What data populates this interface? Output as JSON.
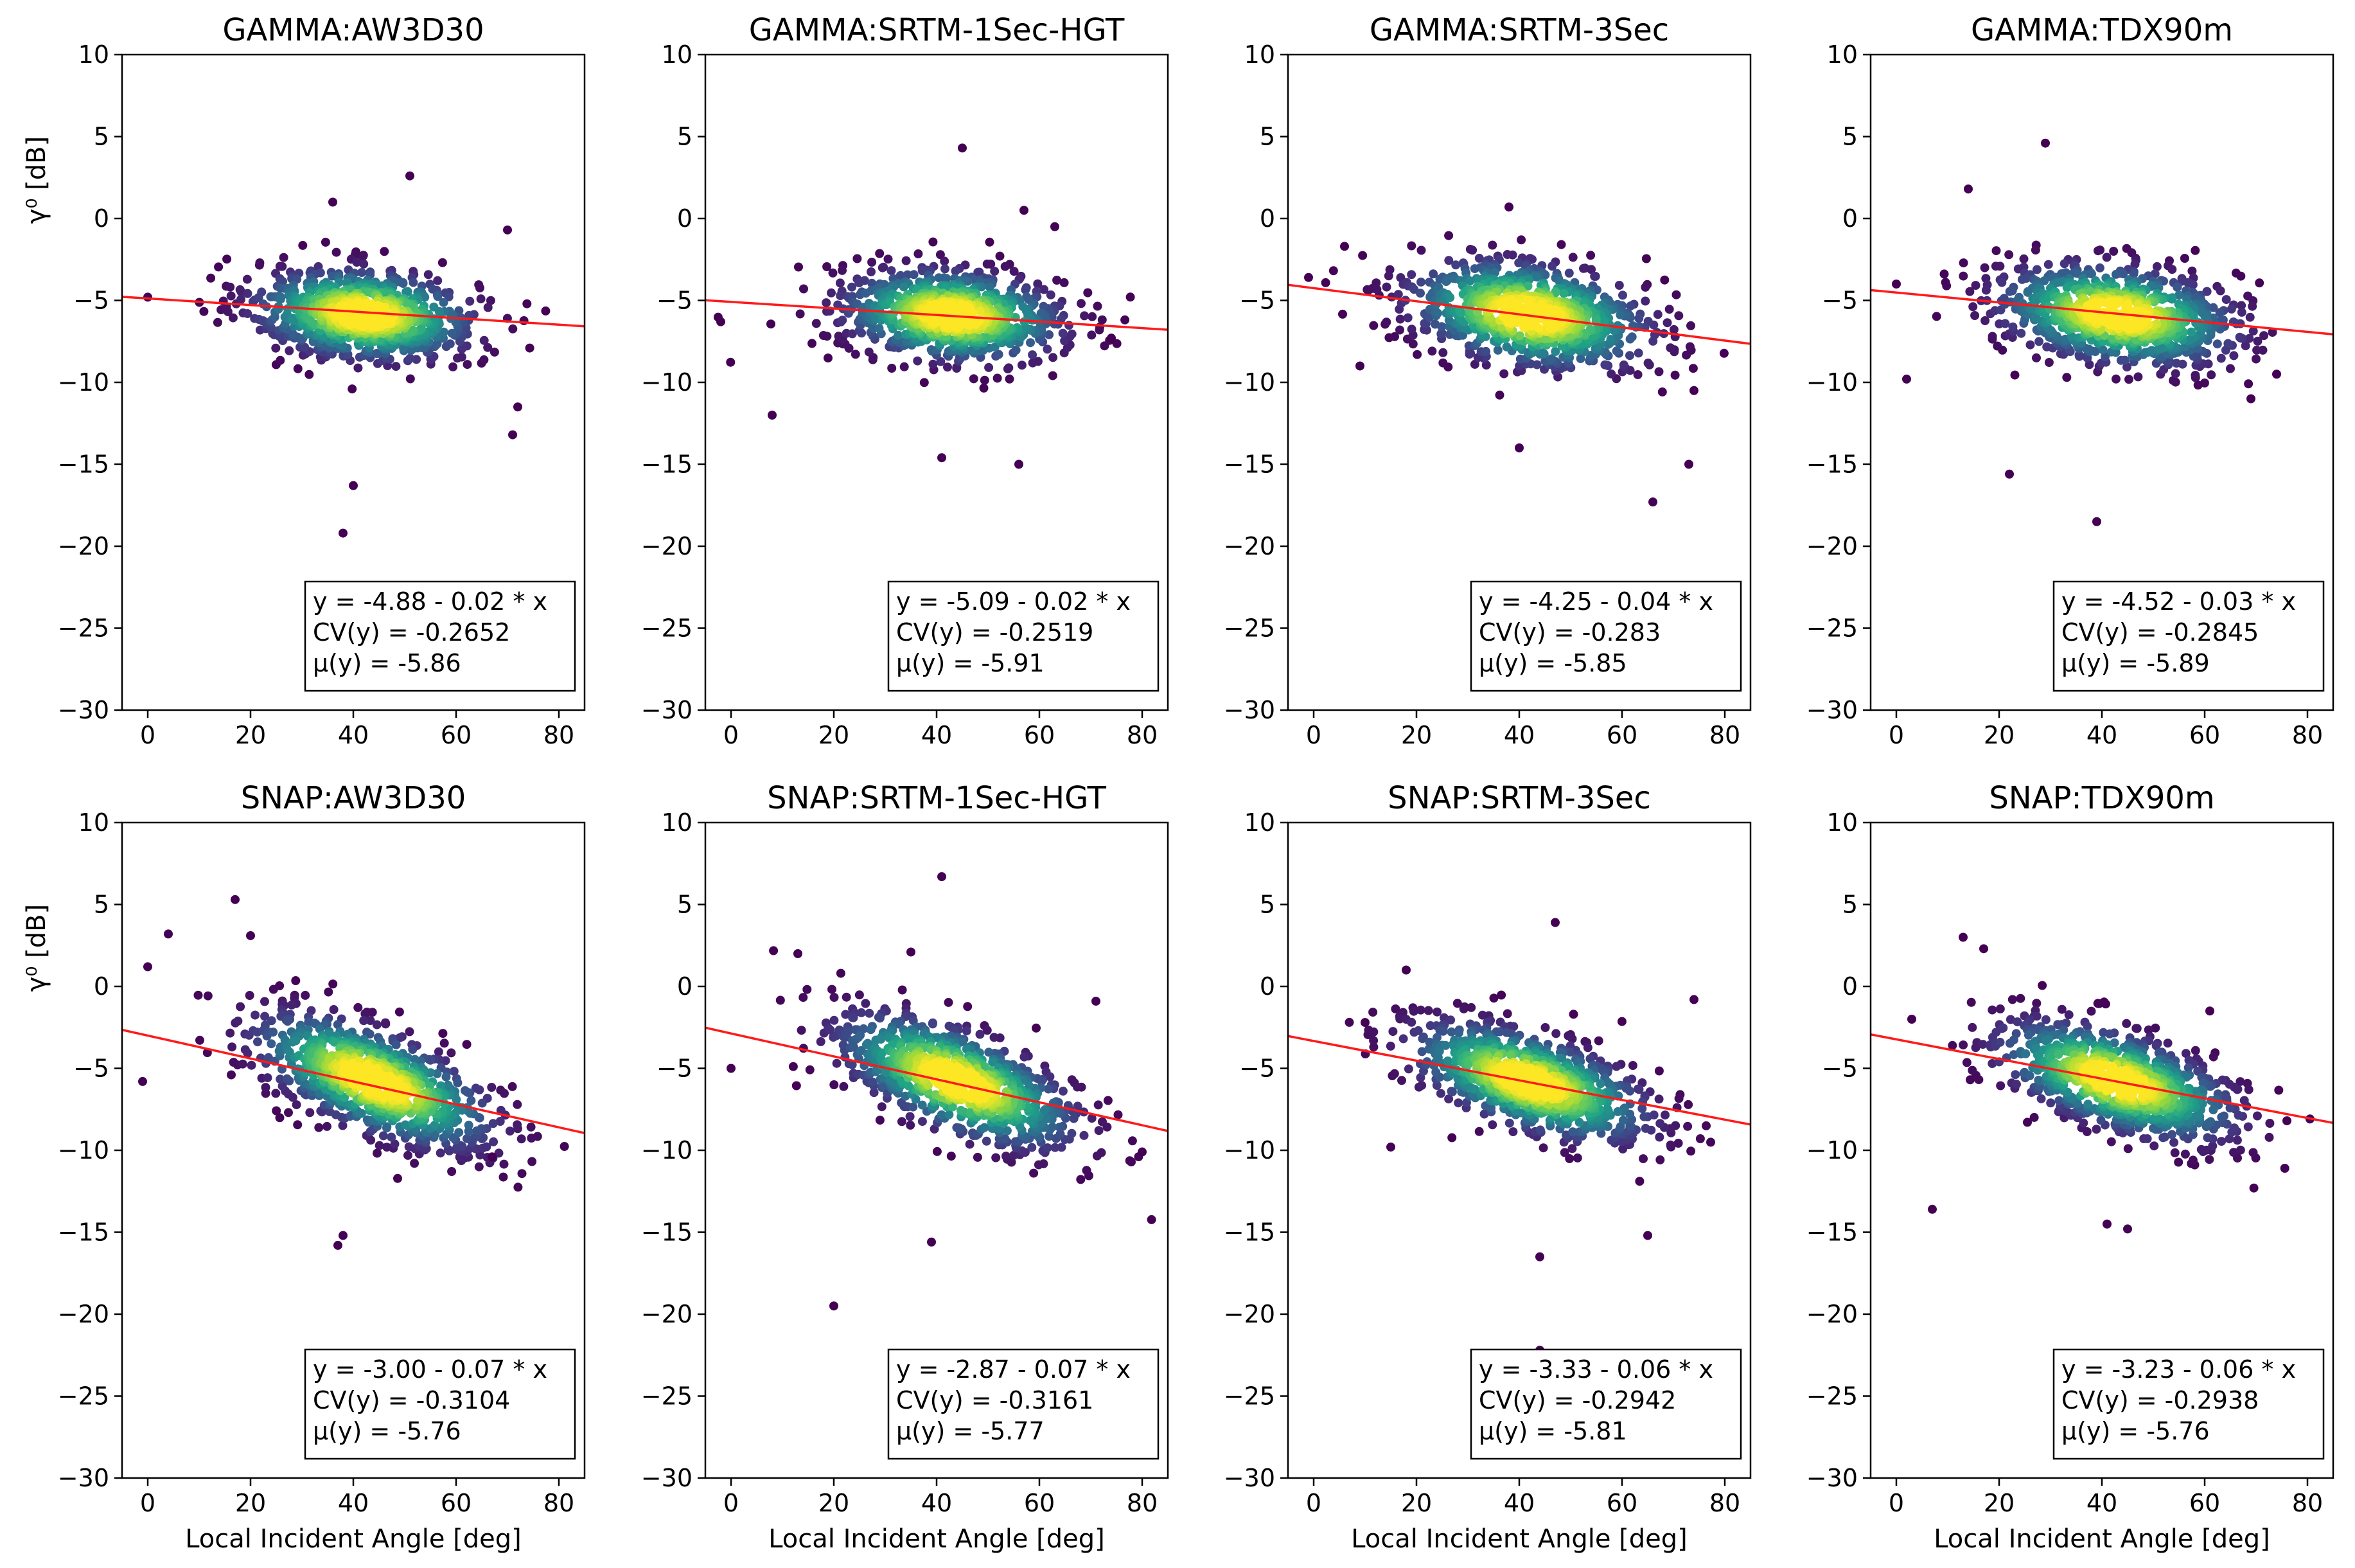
{
  "chart_data": [
    {
      "type": "scatter",
      "title": "GAMMA:AW3D30",
      "xlabel": "",
      "ylabel": "γ⁰ [dB]",
      "xlim": [
        -5,
        85
      ],
      "ylim": [
        -30,
        10
      ],
      "xticks": [
        0,
        20,
        40,
        60,
        80
      ],
      "yticks": [
        10,
        5,
        0,
        -5,
        -10,
        -15,
        -20,
        -25,
        -30
      ],
      "fit": {
        "intercept": -4.88,
        "slope": -0.02
      },
      "center": [
        42,
        -5.86
      ],
      "spread": [
        11,
        1.4
      ],
      "tilt": 0.3,
      "outliers": [
        [
          38,
          -19.2
        ],
        [
          40,
          -16.3
        ],
        [
          51,
          2.6
        ],
        [
          36,
          1.0
        ],
        [
          70,
          -0.7
        ],
        [
          71,
          -13.2
        ],
        [
          0,
          -4.8
        ],
        [
          72,
          -11.5
        ]
      ],
      "stats": {
        "line": "y = -4.88 - 0.02 * x",
        "cv": "CV(y) = -0.2652",
        "mu": "μ(y) = -5.86"
      }
    },
    {
      "type": "scatter",
      "title": "GAMMA:SRTM-1Sec-HGT",
      "xlabel": "",
      "ylabel": "",
      "xlim": [
        -5,
        85
      ],
      "ylim": [
        -30,
        10
      ],
      "xticks": [
        0,
        20,
        40,
        60,
        80
      ],
      "yticks": [
        10,
        5,
        0,
        -5,
        -10,
        -15,
        -20,
        -25,
        -30
      ],
      "fit": {
        "intercept": -5.09,
        "slope": -0.02
      },
      "center": [
        43,
        -5.91
      ],
      "spread": [
        11,
        1.4
      ],
      "tilt": 0.3,
      "outliers": [
        [
          45,
          4.3
        ],
        [
          57,
          0.5
        ],
        [
          8,
          -12.0
        ],
        [
          41,
          -14.6
        ],
        [
          56,
          -15.0
        ],
        [
          -2,
          -6.3
        ],
        [
          74,
          -7.3
        ],
        [
          63,
          -0.5
        ]
      ],
      "stats": {
        "line": "y = -5.09 - 0.02 * x",
        "cv": "CV(y) = -0.2519",
        "mu": "μ(y) = -5.91"
      }
    },
    {
      "type": "scatter",
      "title": "GAMMA:SRTM-3Sec",
      "xlabel": "",
      "ylabel": "",
      "xlim": [
        -5,
        85
      ],
      "ylim": [
        -30,
        10
      ],
      "xticks": [
        0,
        20,
        40,
        60,
        80
      ],
      "yticks": [
        10,
        5,
        0,
        -5,
        -10,
        -15,
        -20,
        -25,
        -30
      ],
      "fit": {
        "intercept": -4.25,
        "slope": -0.04
      },
      "center": [
        42,
        -5.85
      ],
      "spread": [
        12,
        1.6
      ],
      "tilt": 0.6,
      "outliers": [
        [
          66,
          -17.3
        ],
        [
          40,
          -14.0
        ],
        [
          38,
          0.7
        ],
        [
          6,
          -1.7
        ],
        [
          9,
          -9.0
        ],
        [
          73,
          -15.0
        ],
        [
          74,
          -10.5
        ],
        [
          -1,
          -3.6
        ]
      ],
      "stats": {
        "line": "y = -4.25 - 0.04 * x",
        "cv": "CV(y) = -0.283",
        "mu": "μ(y) = -5.85"
      }
    },
    {
      "type": "scatter",
      "title": "GAMMA:TDX90m",
      "xlabel": "",
      "ylabel": "",
      "xlim": [
        -5,
        85
      ],
      "ylim": [
        -30,
        10
      ],
      "xticks": [
        0,
        20,
        40,
        60,
        80
      ],
      "yticks": [
        10,
        5,
        0,
        -5,
        -10,
        -15,
        -20,
        -25,
        -30
      ],
      "fit": {
        "intercept": -4.52,
        "slope": -0.03
      },
      "center": [
        43,
        -5.89
      ],
      "spread": [
        12,
        1.5
      ],
      "tilt": 0.5,
      "outliers": [
        [
          29,
          4.6
        ],
        [
          39,
          -18.5
        ],
        [
          22,
          -15.6
        ],
        [
          14,
          1.8
        ],
        [
          0,
          -4.0
        ],
        [
          2,
          -9.8
        ],
        [
          69,
          -11.0
        ],
        [
          74,
          -9.5
        ]
      ],
      "stats": {
        "line": "y = -4.52 - 0.03 * x",
        "cv": "CV(y) = -0.2845",
        "mu": "μ(y) = -5.89"
      }
    },
    {
      "type": "scatter",
      "title": "SNAP:AW3D30",
      "xlabel": "Local Incident Angle [deg]",
      "ylabel": "γ⁰ [dB]",
      "xlim": [
        -5,
        85
      ],
      "ylim": [
        -30,
        10
      ],
      "xticks": [
        0,
        20,
        40,
        60,
        80
      ],
      "yticks": [
        10,
        5,
        0,
        -5,
        -10,
        -15,
        -20,
        -25,
        -30
      ],
      "fit": {
        "intercept": -3.0,
        "slope": -0.07
      },
      "center": [
        44,
        -5.76
      ],
      "spread": [
        12,
        1.6
      ],
      "tilt": 1.5,
      "outliers": [
        [
          17,
          5.3
        ],
        [
          4,
          3.2
        ],
        [
          0,
          1.2
        ],
        [
          37,
          -15.8
        ],
        [
          20,
          3.1
        ],
        [
          -1,
          -5.8
        ],
        [
          67,
          -10.4
        ],
        [
          38,
          -15.2
        ]
      ],
      "stats": {
        "line": "y = -3.00 - 0.07 * x",
        "cv": "CV(y) = -0.3104",
        "mu": "μ(y) = -5.76"
      }
    },
    {
      "type": "scatter",
      "title": "SNAP:SRTM-1Sec-HGT",
      "xlabel": "Local Incident Angle [deg]",
      "ylabel": "",
      "xlim": [
        -5,
        85
      ],
      "ylim": [
        -30,
        10
      ],
      "xticks": [
        0,
        20,
        40,
        60,
        80
      ],
      "yticks": [
        10,
        5,
        0,
        -5,
        -10,
        -15,
        -20,
        -25,
        -30
      ],
      "fit": {
        "intercept": -2.87,
        "slope": -0.07
      },
      "center": [
        44,
        -5.77
      ],
      "spread": [
        12,
        1.6
      ],
      "tilt": 1.5,
      "outliers": [
        [
          41,
          6.7
        ],
        [
          20,
          -19.5
        ],
        [
          35,
          2.1
        ],
        [
          13,
          2.0
        ],
        [
          71,
          -0.9
        ],
        [
          39,
          -15.6
        ],
        [
          80,
          -10.1
        ],
        [
          0,
          -5.0
        ]
      ],
      "stats": {
        "line": "y = -2.87 - 0.07 * x",
        "cv": "CV(y) = -0.3161",
        "mu": "μ(y) = -5.77"
      }
    },
    {
      "type": "scatter",
      "title": "SNAP:SRTM-3Sec",
      "xlabel": "Local Incident Angle [deg]",
      "ylabel": "",
      "xlim": [
        -5,
        85
      ],
      "ylim": [
        -30,
        10
      ],
      "xticks": [
        0,
        20,
        40,
        60,
        80
      ],
      "yticks": [
        10,
        5,
        0,
        -5,
        -10,
        -15,
        -20,
        -25,
        -30
      ],
      "fit": {
        "intercept": -3.33,
        "slope": -0.06
      },
      "center": [
        42,
        -5.81
      ],
      "spread": [
        12,
        1.5
      ],
      "tilt": 1.2,
      "outliers": [
        [
          44,
          -22.2
        ],
        [
          47,
          3.9
        ],
        [
          44,
          -16.5
        ],
        [
          65,
          -15.2
        ],
        [
          74,
          -0.8
        ],
        [
          10,
          -2.2
        ],
        [
          18,
          1.0
        ],
        [
          15,
          -9.8
        ]
      ],
      "stats": {
        "line": "y = -3.33 - 0.06 * x",
        "cv": "CV(y) = -0.2942",
        "mu": "μ(y) = -5.81"
      }
    },
    {
      "type": "scatter",
      "title": "SNAP:TDX90m",
      "xlabel": "Local Incident Angle [deg]",
      "ylabel": "",
      "xlim": [
        -5,
        85
      ],
      "ylim": [
        -30,
        10
      ],
      "xticks": [
        0,
        20,
        40,
        60,
        80
      ],
      "yticks": [
        10,
        5,
        0,
        -5,
        -10,
        -15,
        -20,
        -25,
        -30
      ],
      "fit": {
        "intercept": -3.23,
        "slope": -0.06
      },
      "center": [
        43,
        -5.76
      ],
      "spread": [
        12,
        1.5
      ],
      "tilt": 1.2,
      "outliers": [
        [
          7,
          -13.6
        ],
        [
          13,
          3.0
        ],
        [
          17,
          2.3
        ],
        [
          45,
          -14.8
        ],
        [
          76,
          -8.2
        ],
        [
          61,
          -1.5
        ],
        [
          3,
          -2.0
        ],
        [
          41,
          -14.5
        ]
      ],
      "stats": {
        "line": "y = -3.23 - 0.06 * x",
        "cv": "CV(y) = -0.2938",
        "mu": "μ(y) = -5.76"
      }
    }
  ],
  "colors": {
    "fit_line": "#ff1a1a",
    "viridis": [
      "#440154",
      "#46327e",
      "#365c8d",
      "#277f8e",
      "#1fa187",
      "#4ac16d",
      "#a0da39",
      "#fde725"
    ]
  }
}
